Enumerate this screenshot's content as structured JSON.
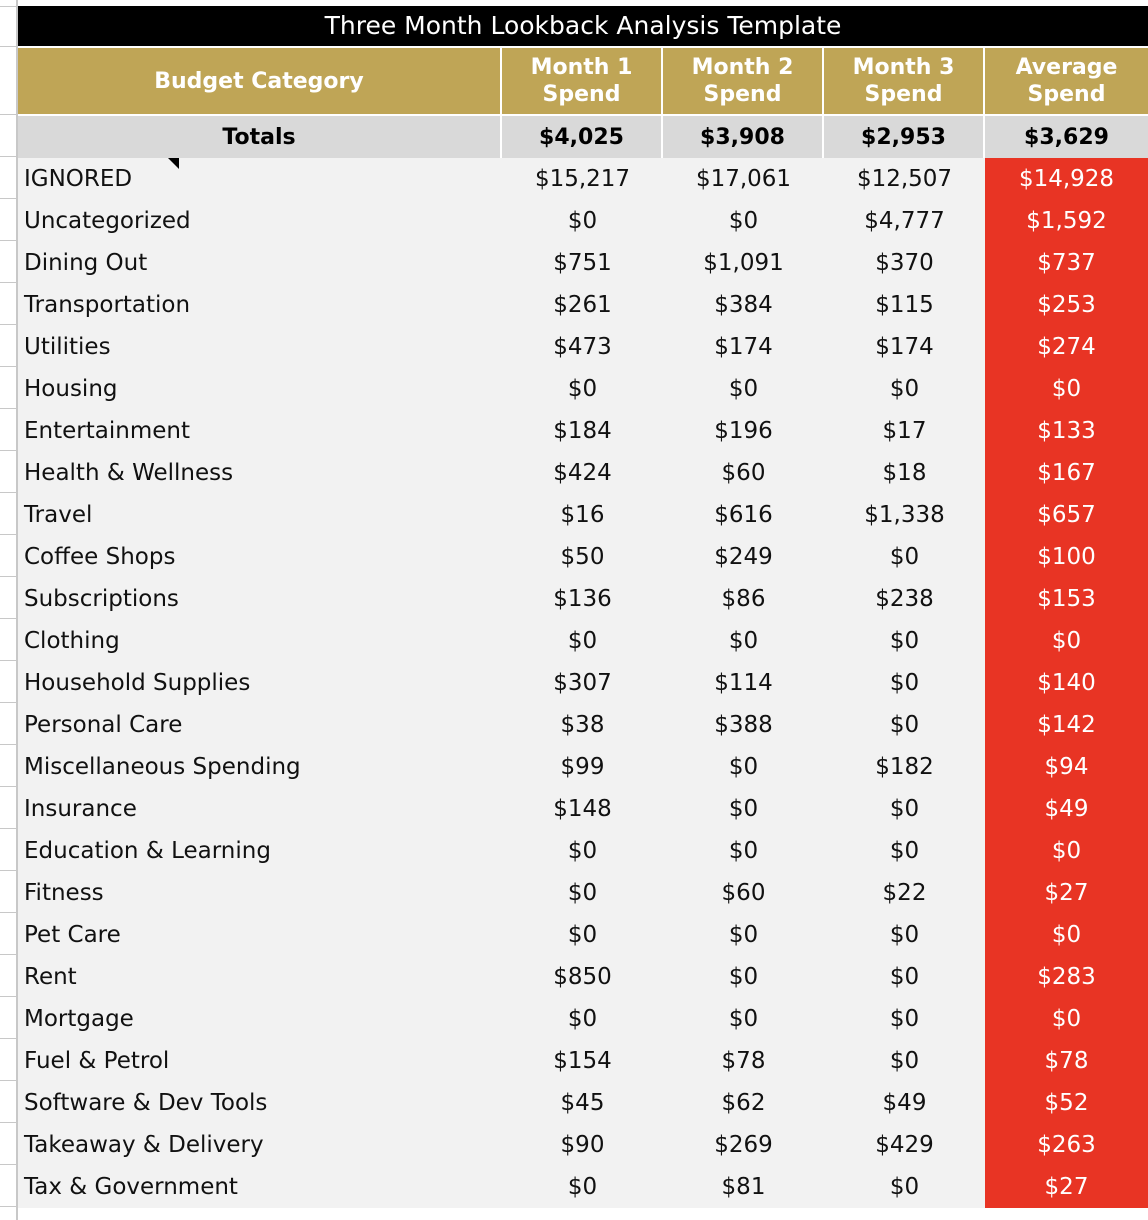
{
  "title": "Three Month Lookback Analysis Template",
  "headers": [
    "Budget Category",
    "Month 1 Spend",
    "Month 2 Spend",
    "Month 3 Spend",
    "Average Spend"
  ],
  "totals": {
    "label": "Totals",
    "m1": "$4,025",
    "m2": "$3,908",
    "m3": "$2,953",
    "avg": "$3,629"
  },
  "colors": {
    "header": "#bfa556",
    "title": "#000000",
    "average_highlight": "#e83424",
    "totals_bg": "#d9d9d9"
  },
  "rows": [
    {
      "category": "IGNORED",
      "m1": "$15,217",
      "m2": "$17,061",
      "m3": "$12,507",
      "avg": "$14,928"
    },
    {
      "category": "Uncategorized",
      "m1": "$0",
      "m2": "$0",
      "m3": "$4,777",
      "avg": "$1,592"
    },
    {
      "category": "Dining Out",
      "m1": "$751",
      "m2": "$1,091",
      "m3": "$370",
      "avg": "$737"
    },
    {
      "category": "Transportation",
      "m1": "$261",
      "m2": "$384",
      "m3": "$115",
      "avg": "$253"
    },
    {
      "category": "Utilities",
      "m1": "$473",
      "m2": "$174",
      "m3": "$174",
      "avg": "$274"
    },
    {
      "category": "Housing",
      "m1": "$0",
      "m2": "$0",
      "m3": "$0",
      "avg": "$0"
    },
    {
      "category": "Entertainment",
      "m1": "$184",
      "m2": "$196",
      "m3": "$17",
      "avg": "$133"
    },
    {
      "category": "Health & Wellness",
      "m1": "$424",
      "m2": "$60",
      "m3": "$18",
      "avg": "$167"
    },
    {
      "category": "Travel",
      "m1": "$16",
      "m2": "$616",
      "m3": "$1,338",
      "avg": "$657"
    },
    {
      "category": "Coffee Shops",
      "m1": "$50",
      "m2": "$249",
      "m3": "$0",
      "avg": "$100"
    },
    {
      "category": "Subscriptions",
      "m1": "$136",
      "m2": "$86",
      "m3": "$238",
      "avg": "$153"
    },
    {
      "category": "Clothing",
      "m1": "$0",
      "m2": "$0",
      "m3": "$0",
      "avg": "$0"
    },
    {
      "category": "Household Supplies",
      "m1": "$307",
      "m2": "$114",
      "m3": "$0",
      "avg": "$140"
    },
    {
      "category": "Personal Care",
      "m1": "$38",
      "m2": "$388",
      "m3": "$0",
      "avg": "$142"
    },
    {
      "category": "Miscellaneous Spending",
      "m1": "$99",
      "m2": "$0",
      "m3": "$182",
      "avg": "$94"
    },
    {
      "category": "Insurance",
      "m1": "$148",
      "m2": "$0",
      "m3": "$0",
      "avg": "$49"
    },
    {
      "category": "Education & Learning",
      "m1": "$0",
      "m2": "$0",
      "m3": "$0",
      "avg": "$0"
    },
    {
      "category": "Fitness",
      "m1": "$0",
      "m2": "$60",
      "m3": "$22",
      "avg": "$27"
    },
    {
      "category": "Pet Care",
      "m1": "$0",
      "m2": "$0",
      "m3": "$0",
      "avg": "$0"
    },
    {
      "category": "Rent",
      "m1": "$850",
      "m2": "$0",
      "m3": "$0",
      "avg": "$283"
    },
    {
      "category": "Mortgage",
      "m1": "$0",
      "m2": "$0",
      "m3": "$0",
      "avg": "$0"
    },
    {
      "category": "Fuel & Petrol",
      "m1": "$154",
      "m2": "$78",
      "m3": "$0",
      "avg": "$78"
    },
    {
      "category": "Software & Dev Tools",
      "m1": "$45",
      "m2": "$62",
      "m3": "$49",
      "avg": "$52"
    },
    {
      "category": "Takeaway & Delivery",
      "m1": "$90",
      "m2": "$269",
      "m3": "$429",
      "avg": "$263"
    },
    {
      "category": "Tax & Government",
      "m1": "$0",
      "m2": "$81",
      "m3": "$0",
      "avg": "$27"
    }
  ]
}
